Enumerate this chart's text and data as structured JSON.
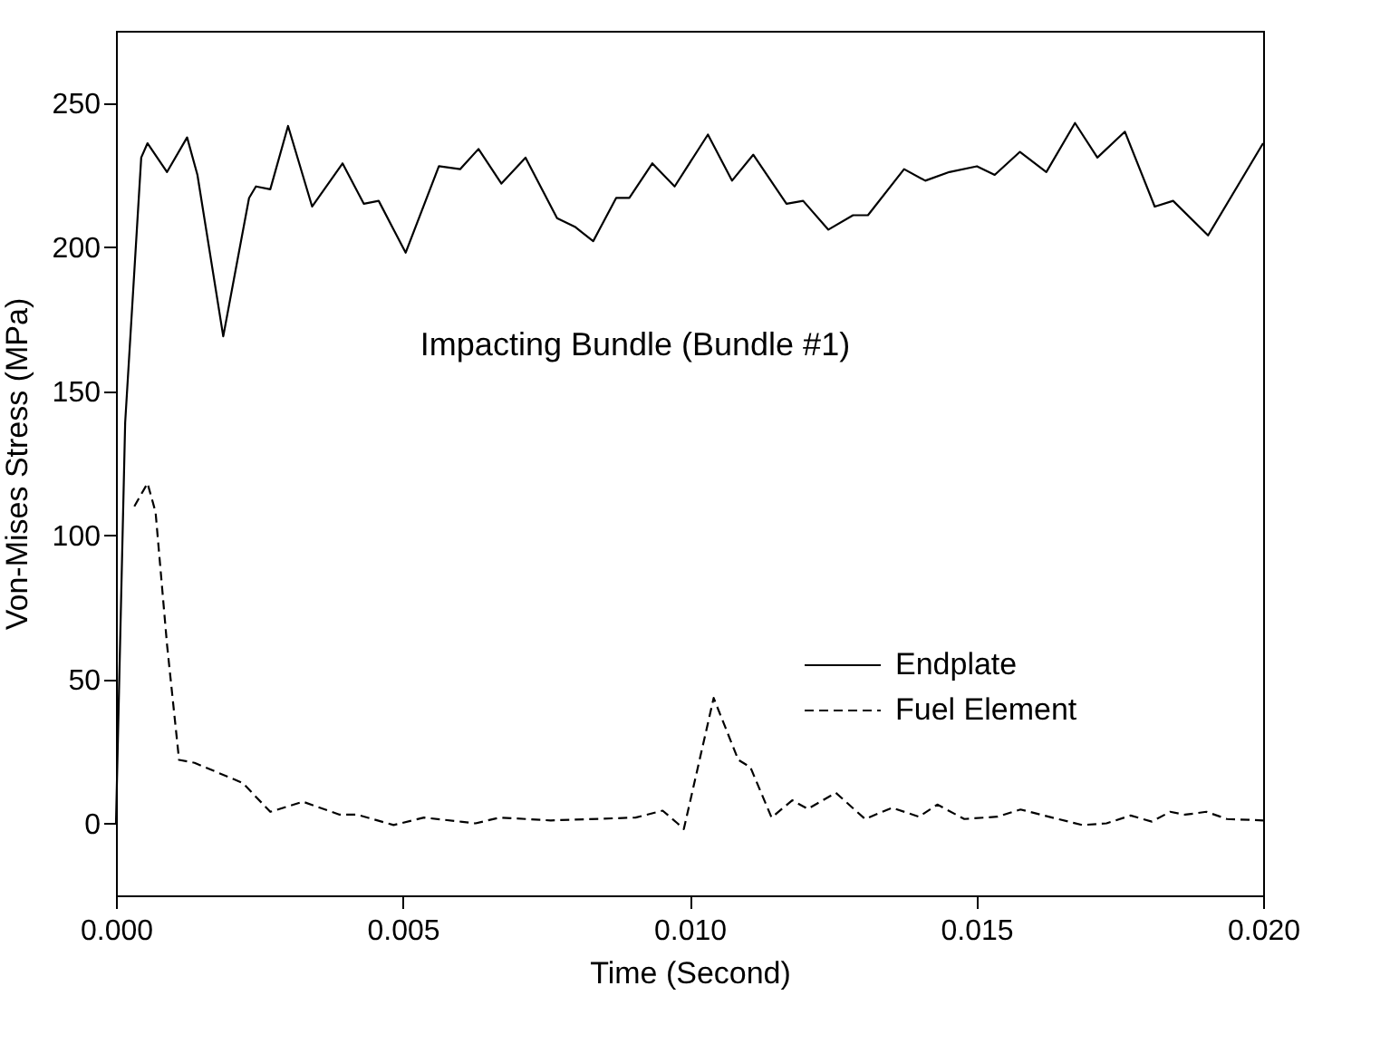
{
  "chart_data": {
    "type": "line",
    "xlabel": "Time (Second)",
    "ylabel": "Von-Mises Stress (MPa)",
    "annotations": [
      "Impacting Bundle (Bundle #1)"
    ],
    "xlim": [
      0,
      0.02
    ],
    "xticks": [
      {
        "value": 0,
        "label": "0.000"
      },
      {
        "value": 0.005,
        "label": "0.005"
      },
      {
        "value": 0.01,
        "label": "0.010"
      },
      {
        "value": 0.015,
        "label": "0.015"
      },
      {
        "value": 0.02,
        "label": "0.020"
      }
    ],
    "ylim": [
      -25,
      275
    ],
    "yticks": [
      0,
      50,
      100,
      150,
      200,
      250
    ],
    "grid": false,
    "legend": "bottom right",
    "series": [
      {
        "name": "Endplate",
        "color": "#000000",
        "line_style": "solid",
        "x": [
          0,
          0.00016,
          0.00044,
          0.00055,
          0.00089,
          0.00124,
          0.00142,
          0.00187,
          0.00232,
          0.00244,
          0.00269,
          0.003,
          0.00342,
          0.00395,
          0.00432,
          0.00458,
          0.00505,
          0.00563,
          0.006,
          0.00632,
          0.00672,
          0.00714,
          0.00769,
          0.008,
          0.00832,
          0.00872,
          0.00895,
          0.00935,
          0.00974,
          0.01032,
          0.01074,
          0.01111,
          0.01169,
          0.01198,
          0.01242,
          0.01285,
          0.01311,
          0.01374,
          0.01411,
          0.01453,
          0.01501,
          0.01532,
          0.01576,
          0.01622,
          0.01672,
          0.01711,
          0.01759,
          0.01811,
          0.01843,
          0.01904,
          0.02
        ],
        "values": [
          0,
          139,
          231,
          236,
          226,
          238,
          225,
          169,
          217,
          221,
          220,
          242,
          214,
          229,
          215,
          216,
          198,
          228,
          227,
          234,
          222,
          231,
          210,
          207,
          202,
          217,
          217,
          229,
          221,
          239,
          223,
          232,
          215,
          216,
          206,
          211,
          211,
          227,
          223,
          226,
          228,
          225,
          233,
          226,
          243,
          231,
          240,
          214,
          216,
          204,
          236
        ]
      },
      {
        "name": "Fuel Element",
        "color": "#000000",
        "line_style": "dashed",
        "x": [
          0.00032,
          0.00055,
          0.00069,
          0.00089,
          0.0011,
          0.00137,
          0.00221,
          0.00269,
          0.00326,
          0.0039,
          0.00421,
          0.00484,
          0.00537,
          0.00627,
          0.00669,
          0.00758,
          0.00906,
          0.00953,
          0.00979,
          0.0099,
          0.01042,
          0.01085,
          0.01106,
          0.01143,
          0.01179,
          0.01206,
          0.01255,
          0.01306,
          0.01353,
          0.014,
          0.01432,
          0.01479,
          0.01537,
          0.01577,
          0.01632,
          0.01685,
          0.01727,
          0.01769,
          0.01806,
          0.01838,
          0.01864,
          0.01901,
          0.01937,
          0.02
        ],
        "values": [
          110,
          118,
          108,
          62,
          22,
          21,
          14,
          4,
          7.5,
          3,
          3,
          -0.6,
          2,
          0,
          2,
          1,
          2,
          4.4,
          0,
          -2,
          43.5,
          22,
          19.5,
          2,
          8,
          5,
          10.6,
          1.5,
          5.4,
          2.3,
          6.5,
          1.5,
          2.3,
          4.8,
          2,
          -0.6,
          0,
          2.7,
          0.6,
          4,
          3,
          4,
          1.5,
          1
        ]
      }
    ]
  }
}
